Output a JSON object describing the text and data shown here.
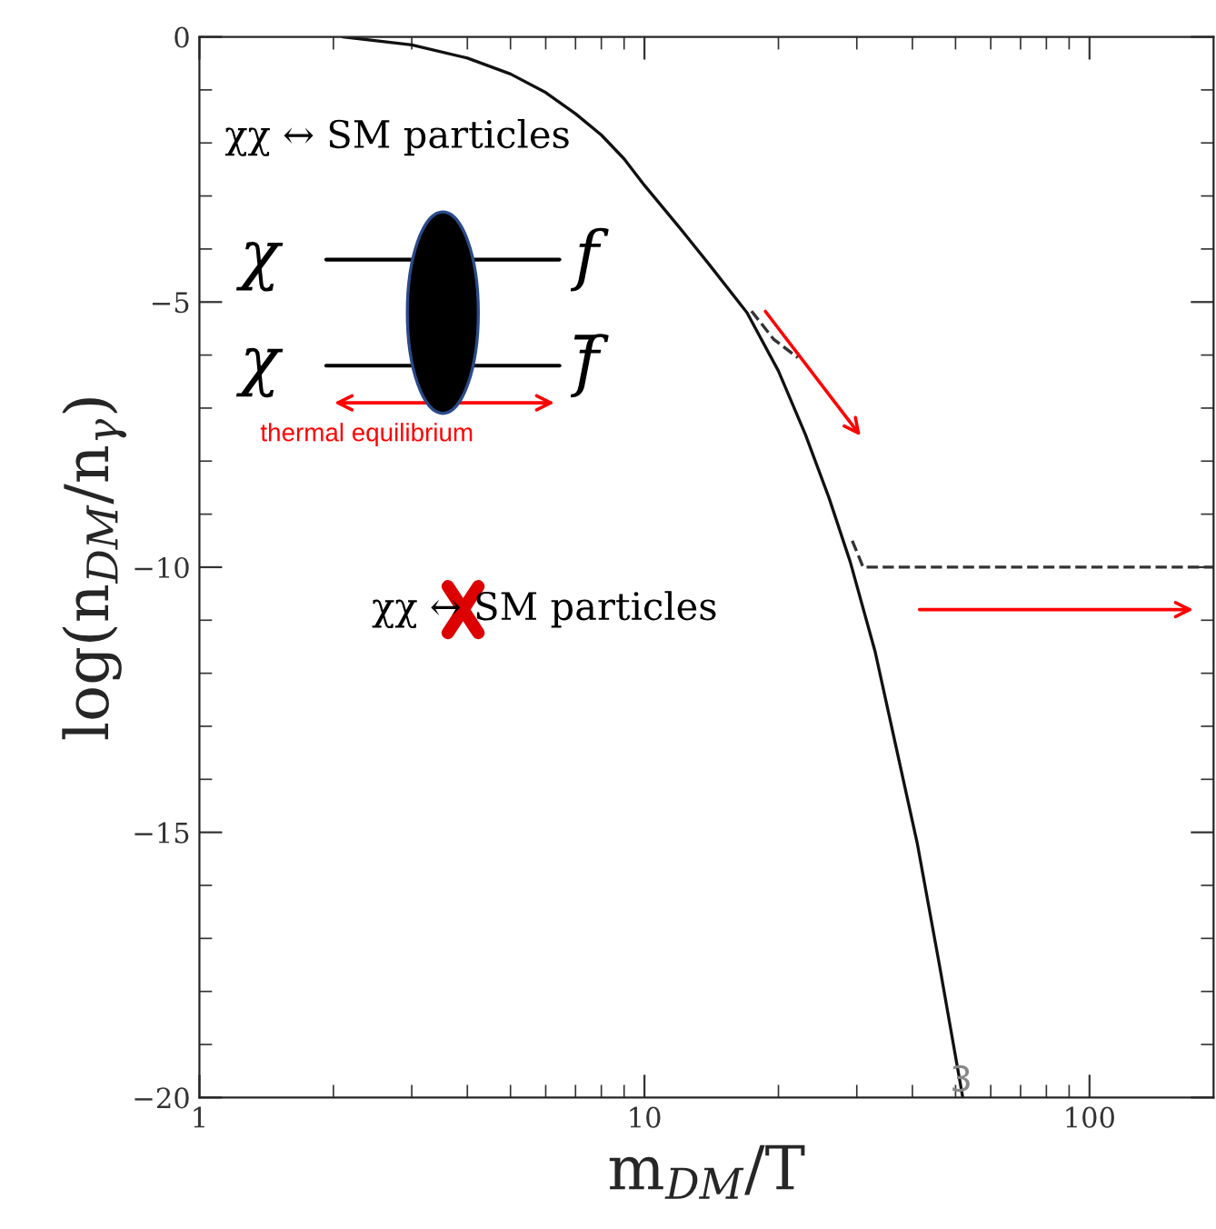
{
  "chart_data": {
    "type": "line",
    "xlabel": "m$_{DM}$/T",
    "ylabel": "log(n$_{DM}$/n$_{γ}$)",
    "series": [
      {
        "color": "#111111",
        "line_style": "solid",
        "x": [
          2.1,
          3,
          4,
          5,
          6,
          7,
          8,
          9,
          10,
          12,
          14,
          17,
          20,
          23,
          26,
          29,
          33,
          37,
          41,
          46,
          51.9
        ],
        "values": [
          0,
          -0.15,
          -0.4,
          -0.7,
          -1.05,
          -1.45,
          -1.85,
          -2.3,
          -2.8,
          -3.6,
          -4.3,
          -5.2,
          -6.3,
          -7.5,
          -8.7,
          -9.9,
          -11.6,
          -13.5,
          -15.2,
          -17.5,
          -20
        ]
      },
      {
        "color": "#333333",
        "line_style": "dashed",
        "x": [
          29.3,
          31,
          40,
          60,
          100,
          190
        ],
        "values": [
          -9.5,
          -10,
          -10,
          -10,
          -10,
          -10
        ]
      },
      {
        "color": "#333333",
        "line_style": "dashed",
        "x": [
          17.4,
          19.5,
          22.1
        ],
        "values": [
          -5.17,
          -5.7,
          -6.05
        ]
      }
    ],
    "log": "x",
    "xlim": [
      1,
      190
    ],
    "ylim": [
      -20,
      0
    ],
    "xticks": [
      1,
      10,
      100
    ],
    "yticks": [
      {
        "value": -20,
        "label": "−20"
      },
      {
        "value": -15,
        "label": "−15"
      },
      {
        "value": -10,
        "label": "−10"
      },
      {
        "value": -5,
        "label": "−5"
      },
      0
    ],
    "grid": false,
    "legend": false,
    "annotations": [
      "χχ ↔ SM particles",
      "χ",
      "χ",
      "f",
      "f̄",
      "thermal equilibrium",
      "χχ ↔ SM particles",
      "3"
    ]
  }
}
